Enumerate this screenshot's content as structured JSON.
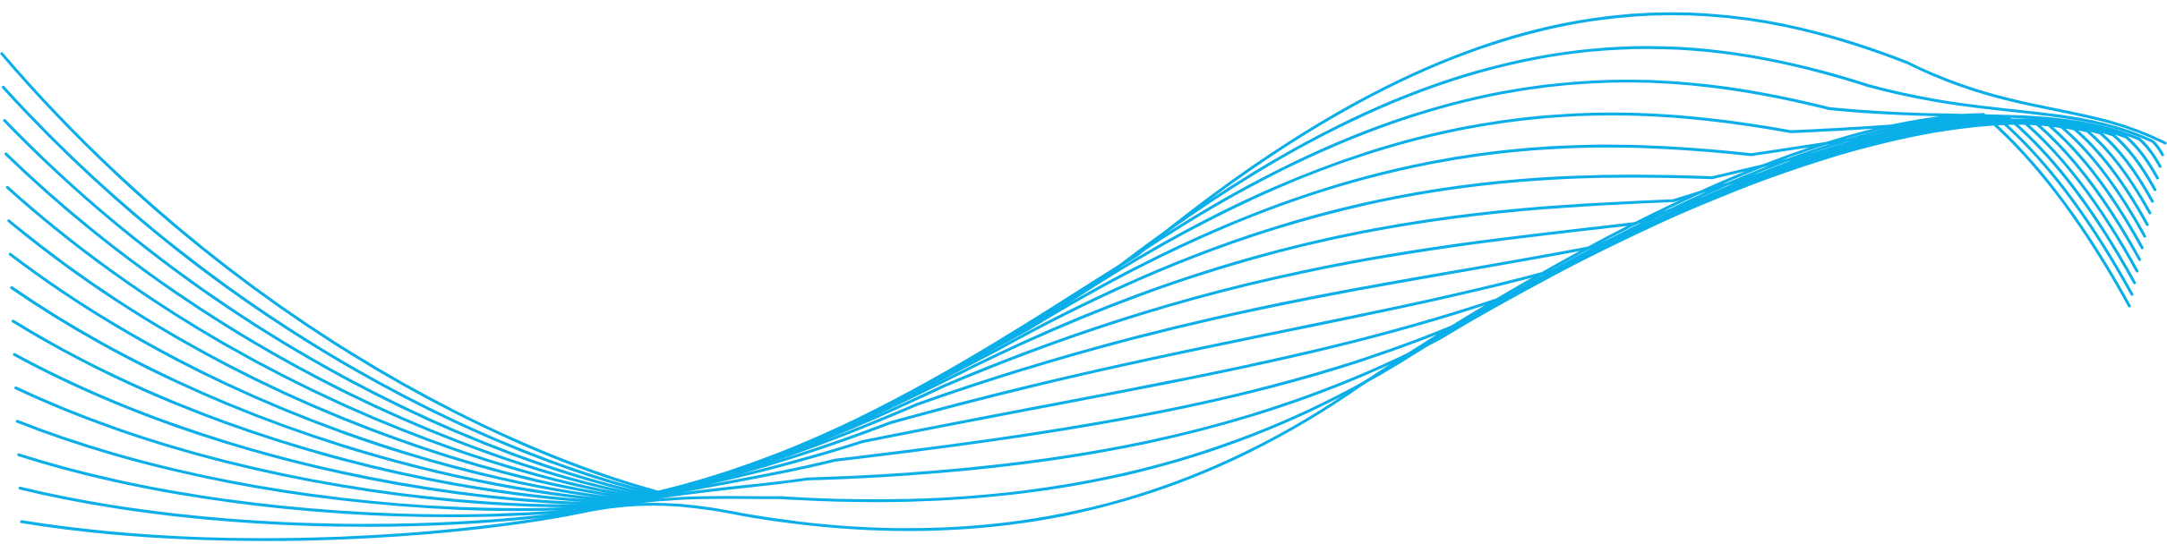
{
  "graphic": {
    "kind": "decorative-line-wave",
    "stroke_color": "#0aaee8",
    "background_color": "#ffffff",
    "line_count": 15
  }
}
